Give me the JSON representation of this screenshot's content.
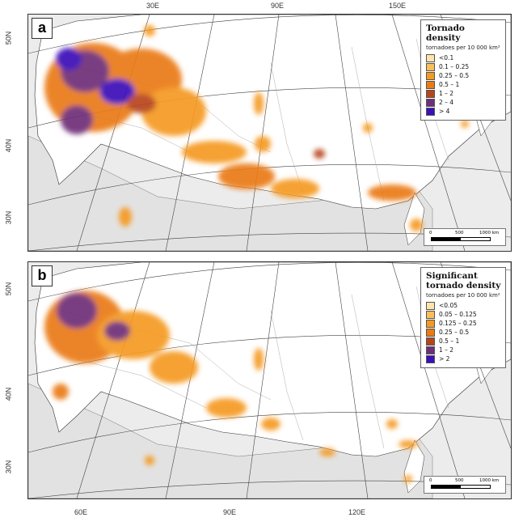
{
  "top_lon_labels": [
    "30E",
    "90E",
    "150E"
  ],
  "bottom_lon_labels": [
    "60E",
    "90E",
    "120E"
  ],
  "panels": [
    {
      "id": "a",
      "letter": "a",
      "legend_title": "Tornado density",
      "legend_subtitle": "tornadoes per 10 000 km²",
      "classes": [
        {
          "label": "<0.1",
          "color": "#fde3ae"
        },
        {
          "label": "0.1 – 0.25",
          "color": "#fbbf5a"
        },
        {
          "label": "0.25 – 0.5",
          "color": "#f59a20"
        },
        {
          "label": "0.5 – 1",
          "color": "#ea7a12"
        },
        {
          "label": "1 – 2",
          "color": "#b7451c"
        },
        {
          "label": "2 – 4",
          "color": "#6e2e78"
        },
        {
          "label": "> 4",
          "color": "#3a10b8"
        }
      ],
      "lat_labels": [
        "50N",
        "40N",
        "30N"
      ],
      "scalebar": {
        "labels": [
          "0",
          "500",
          "1000 km"
        ]
      }
    },
    {
      "id": "b",
      "letter": "b",
      "legend_title": "Significant tornado density",
      "legend_subtitle": "tornadoes per 10 000 km²",
      "classes": [
        {
          "label": "<0.05",
          "color": "#fde3ae"
        },
        {
          "label": "0.05 – 0.125",
          "color": "#fbbf5a"
        },
        {
          "label": "0.125 – 0.25",
          "color": "#f59a20"
        },
        {
          "label": "0.25 – 0.5",
          "color": "#ea7a12"
        },
        {
          "label": "0.5 – 1",
          "color": "#b7451c"
        },
        {
          "label": "1 – 2",
          "color": "#6e2e78"
        },
        {
          "label": "> 2",
          "color": "#3a10b8"
        }
      ],
      "lat_labels": [
        "50N",
        "40N",
        "30N"
      ],
      "scalebar": {
        "labels": [
          "0",
          "500",
          "1000 km"
        ]
      }
    }
  ],
  "colors": {
    "land_russia": "#ffffff",
    "land_other": "#e4e4e4",
    "sea": "#ececec",
    "graticule": "#555555",
    "border": "#222222"
  }
}
